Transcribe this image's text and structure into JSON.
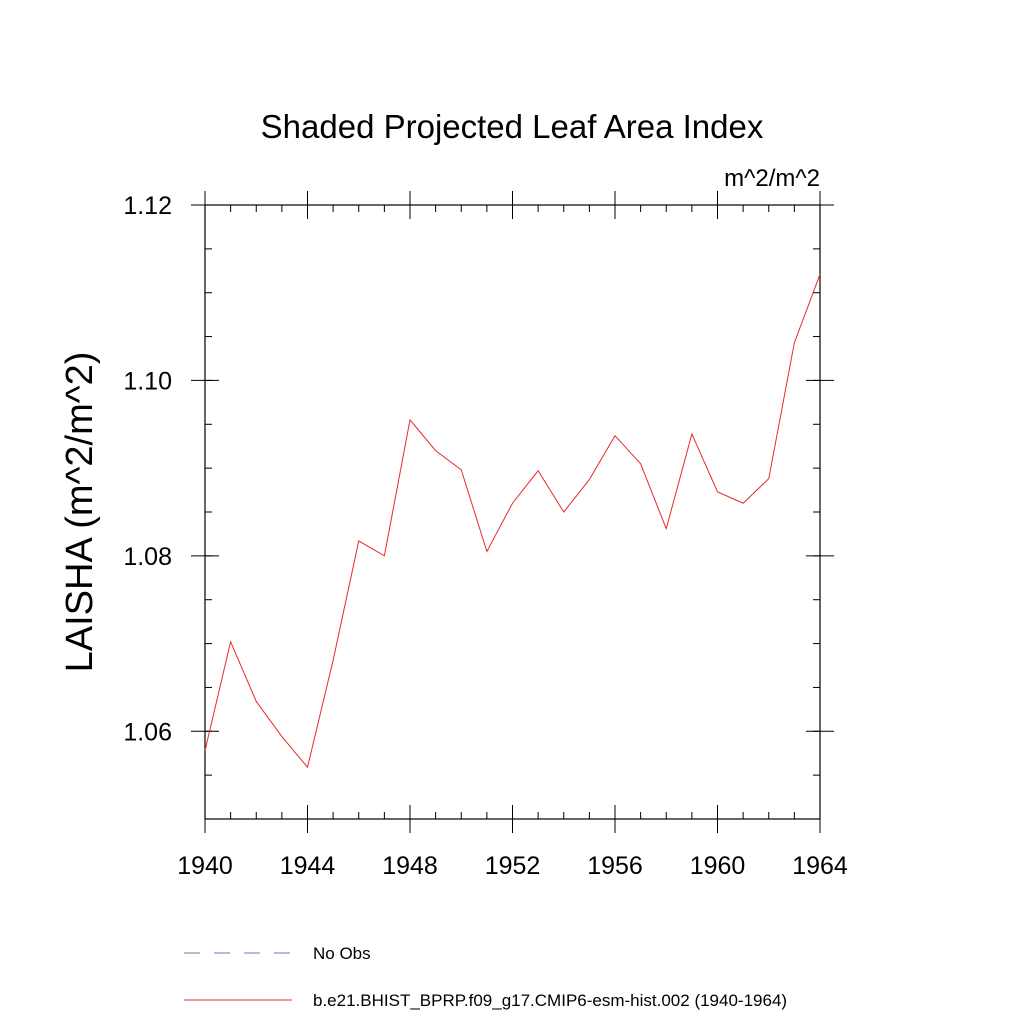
{
  "chart_data": {
    "type": "line",
    "title": "Shaded Projected Leaf Area Index",
    "units_label": "m^2/m^2",
    "xlabel": "",
    "ylabel": "LAISHA  (m^2/m^2)",
    "xlim": [
      1940,
      1964
    ],
    "ylim": [
      1.05,
      1.12
    ],
    "x_ticks": [
      1940,
      1944,
      1948,
      1952,
      1956,
      1960,
      1964
    ],
    "x_tick_labels": [
      "1940",
      "1944",
      "1948",
      "1952",
      "1956",
      "1960",
      "1964"
    ],
    "y_ticks": [
      1.06,
      1.08,
      1.1,
      1.12
    ],
    "y_tick_labels": [
      "1.06",
      "1.08",
      "1.10",
      "1.12"
    ],
    "y_minor_step": 0.005,
    "x_minor_step": 1,
    "grid": false,
    "legend_position": "bottom",
    "series": [
      {
        "name": "No Obs",
        "color": "#7b72b8",
        "dash": "dashed",
        "x": [],
        "values": []
      },
      {
        "name": "b.e21.BHIST_BPRP.f09_g17.CMIP6-esm-hist.002 (1940-1964)",
        "color": "#e8292b",
        "dash": "solid",
        "x": [
          1940,
          1941,
          1942,
          1943,
          1944,
          1945,
          1946,
          1947,
          1948,
          1949,
          1950,
          1951,
          1952,
          1953,
          1954,
          1955,
          1956,
          1957,
          1958,
          1959,
          1960,
          1961,
          1962,
          1963,
          1964
        ],
        "values": [
          1.0578,
          1.0702,
          1.0634,
          1.0594,
          1.0559,
          1.0681,
          1.0817,
          1.08,
          1.0955,
          1.092,
          1.0898,
          1.0805,
          1.086,
          1.0897,
          1.085,
          1.0887,
          1.0937,
          1.0905,
          1.0831,
          1.0939,
          1.0873,
          1.086,
          1.0888,
          1.1043,
          1.1121
        ]
      }
    ]
  }
}
